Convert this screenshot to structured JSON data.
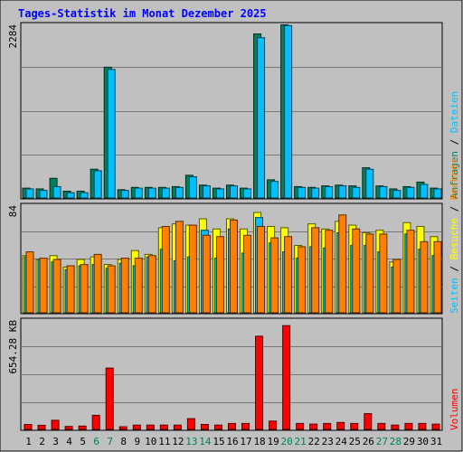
{
  "title": "Tages-Statistik im Monat Dezember 2025",
  "colors": {
    "background": "#c0c0c0",
    "grid": "#777777",
    "title": "#0000ff",
    "anfragen": "#00805c",
    "dateien": "#00c0ff",
    "seiten": "#00c0ff",
    "besuche": "#ffff00",
    "rechner": "#ff8000",
    "volumen": "#ff0000",
    "weekend": "#00805c",
    "day": "#000000"
  },
  "right_label": {
    "top": [
      "Anfragen",
      "Dateien"
    ],
    "middle": [
      "Seiten",
      "Besuche",
      "Rechner"
    ],
    "bottom": [
      "Volumen"
    ],
    "sep": " / "
  },
  "chart_data": [
    {
      "type": "bar",
      "id": "hits-files",
      "y_max_label": "2284",
      "ylim": [
        0,
        2284
      ],
      "grid": true,
      "categories": [
        "1",
        "2",
        "3",
        "4",
        "5",
        "6",
        "7",
        "8",
        "9",
        "10",
        "11",
        "12",
        "13",
        "14",
        "15",
        "16",
        "17",
        "18",
        "19",
        "20",
        "21",
        "22",
        "23",
        "24",
        "25",
        "26",
        "27",
        "28",
        "29",
        "30",
        "31"
      ],
      "weekend_days": [
        "6",
        "7",
        "13",
        "14",
        "20",
        "21",
        "27",
        "28"
      ],
      "series": [
        {
          "name": "Anfragen",
          "values": [
            130,
            120,
            260,
            90,
            90,
            380,
            1730,
            110,
            140,
            140,
            140,
            150,
            300,
            170,
            130,
            170,
            130,
            2170,
            240,
            2290,
            150,
            140,
            160,
            170,
            160,
            400,
            160,
            120,
            150,
            210,
            130
          ]
        },
        {
          "name": "Dateien",
          "values": [
            120,
            100,
            150,
            70,
            70,
            360,
            1700,
            100,
            130,
            130,
            130,
            140,
            280,
            160,
            120,
            160,
            120,
            2120,
            220,
            2280,
            140,
            130,
            150,
            160,
            140,
            380,
            150,
            100,
            140,
            180,
            120
          ]
        }
      ]
    },
    {
      "type": "bar",
      "id": "pages-visits",
      "y_max_label": "84",
      "ylim": [
        0,
        84
      ],
      "grid": true,
      "series": [
        {
          "name": "Seiten",
          "values": [
            44,
            42,
            40,
            34,
            37,
            38,
            35,
            39,
            37,
            44,
            50,
            41,
            44,
            65,
            43,
            66,
            47,
            75,
            55,
            48,
            43,
            52,
            51,
            63,
            53,
            53,
            48,
            36,
            62,
            50,
            45
          ]
        },
        {
          "name": "Besuche",
          "values": [
            45,
            42,
            45,
            36,
            42,
            44,
            38,
            42,
            49,
            46,
            67,
            70,
            69,
            74,
            66,
            74,
            66,
            79,
            68,
            67,
            53,
            70,
            66,
            72,
            69,
            63,
            65,
            40,
            71,
            68,
            60
          ]
        },
        {
          "name": "Rechner",
          "values": [
            48,
            43,
            42,
            37,
            38,
            46,
            37,
            43,
            43,
            45,
            68,
            72,
            69,
            61,
            60,
            73,
            61,
            68,
            59,
            60,
            52,
            67,
            65,
            77,
            66,
            62,
            62,
            42,
            65,
            56,
            56
          ]
        }
      ]
    },
    {
      "type": "bar",
      "id": "volume",
      "y_max_label": "654.28 KB",
      "ylim": [
        0,
        654.28
      ],
      "grid": true,
      "series": [
        {
          "name": "Volumen",
          "values": [
            30,
            25,
            55,
            18,
            20,
            85,
            370,
            16,
            26,
            26,
            26,
            26,
            65,
            30,
            26,
            36,
            36,
            562,
            50,
            626,
            36,
            32,
            36,
            42,
            36,
            95,
            36,
            26,
            36,
            36,
            32
          ]
        }
      ]
    }
  ]
}
